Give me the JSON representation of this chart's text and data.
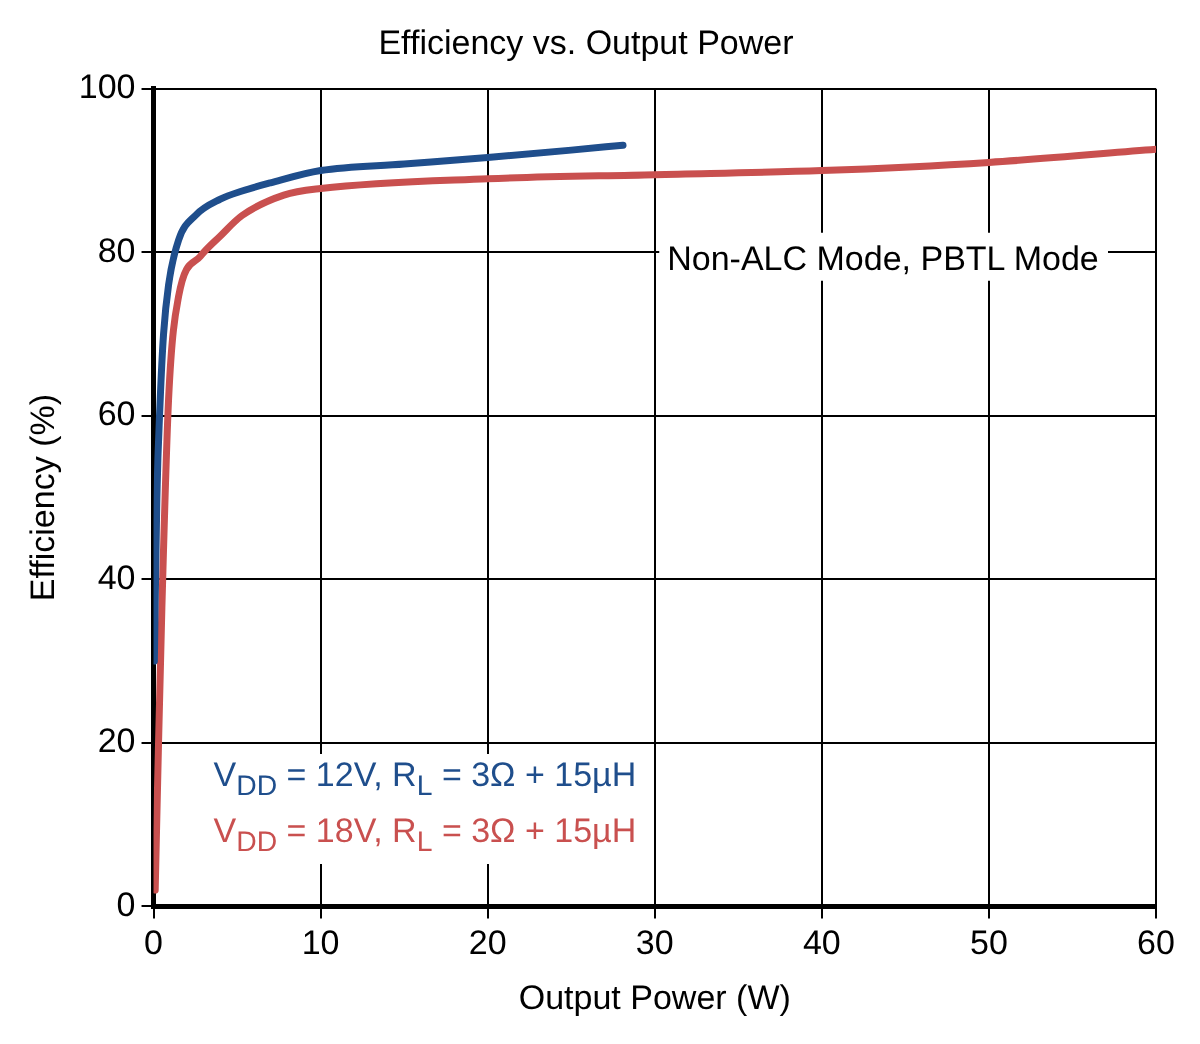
{
  "chart_data": {
    "type": "line",
    "title": "Efficiency vs. Output Power",
    "xlabel": "Output Power (W)",
    "ylabel": "Efficiency (%)",
    "xlim": [
      0,
      60
    ],
    "xticks": [
      0,
      10,
      20,
      30,
      40,
      50,
      60
    ],
    "ylim": [
      0,
      100
    ],
    "yticks": [
      0,
      20,
      40,
      60,
      80,
      100
    ],
    "grid": true,
    "legend": "bottom left",
    "marker": "none",
    "line_style": "solid",
    "annotations": [
      "Non-ALC Mode, PBTL Mode"
    ],
    "series": [
      {
        "name": "V$_{DD}$ = 12V, R$_{L}$ = 3Ω + 15µH",
        "color": "#1f4e8c",
        "x": [
          0.05,
          0.2,
          0.4,
          0.6,
          0.9,
          1.5,
          2.5,
          4,
          5.3,
          7,
          10,
          15,
          20,
          25,
          28.1
        ],
        "values": [
          30,
          50,
          62,
          70,
          76,
          81.5,
          84.5,
          86.5,
          87.5,
          88.5,
          90,
          90.8,
          91.6,
          92.5,
          93.1
        ]
      },
      {
        "name": "V$_{DD}$ = 18V, R$_{L}$ = 3Ω + 15µH",
        "color": "#c9504f",
        "x": [
          0.1,
          0.3,
          0.5,
          0.9,
          1.5,
          2.8,
          4,
          5.3,
          7.8,
          10,
          20,
          30,
          40,
          50,
          60
        ],
        "values": [
          2,
          20,
          36.5,
          62,
          74.6,
          79.5,
          82,
          84.5,
          87,
          87.8,
          89,
          89.5,
          90,
          91,
          92.6
        ]
      }
    ]
  }
}
